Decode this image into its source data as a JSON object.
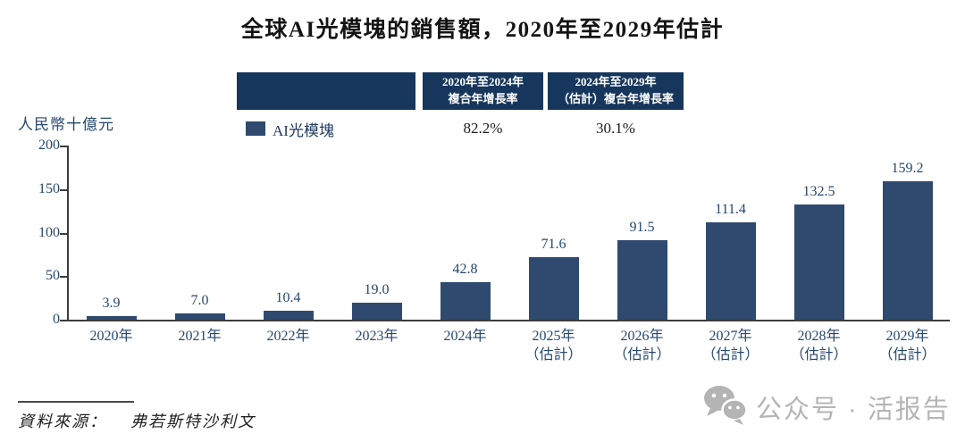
{
  "title": "全球AI光模塊的銷售額，2020年至2029年估計",
  "y_axis_unit": "人民幣十億元",
  "legend": {
    "label": "AI光模塊",
    "swatch_color": "#2f4a6e"
  },
  "cagr_table": {
    "header_bg": "#16365c",
    "col1": {
      "line1": "2020年至2024年",
      "line2": "複合年增長率",
      "value": "82.2%"
    },
    "col2": {
      "line1": "2024年至2029年",
      "line2": "（估計）複合年增長率",
      "value": "30.1%"
    }
  },
  "chart_data": {
    "type": "bar",
    "categories": [
      {
        "year": "2020年",
        "note": ""
      },
      {
        "year": "2021年",
        "note": ""
      },
      {
        "year": "2022年",
        "note": ""
      },
      {
        "year": "2023年",
        "note": ""
      },
      {
        "year": "2024年",
        "note": ""
      },
      {
        "year": "2025年",
        "note": "（估計）"
      },
      {
        "year": "2026年",
        "note": "（估計）"
      },
      {
        "year": "2027年",
        "note": "（估計）"
      },
      {
        "year": "2028年",
        "note": "（估計）"
      },
      {
        "year": "2029年",
        "note": "（估計）"
      }
    ],
    "values": [
      3.9,
      7.0,
      10.4,
      19.0,
      42.8,
      71.6,
      91.5,
      111.4,
      132.5,
      159.2
    ],
    "title": "全球AI光模塊的銷售額，2020年至2029年估計",
    "xlabel": "",
    "ylabel": "人民幣十億元",
    "ylim": [
      0,
      200
    ],
    "yticks": [
      0,
      50,
      100,
      150,
      200
    ],
    "bar_color": "#2f4a6e",
    "label_color": "#25476e",
    "grid": false,
    "legend_position": "top"
  },
  "source": {
    "label": "資料來源：",
    "value": "弗若斯特沙利文"
  },
  "watermark": {
    "text": "公众号 · 活报告",
    "icon": "wechat-icon"
  },
  "colors": {
    "header_navy": "#16365c",
    "bar_navy": "#2f4a6e",
    "text_navy": "#25476e",
    "watermark_gray": "#b4b4b4"
  }
}
